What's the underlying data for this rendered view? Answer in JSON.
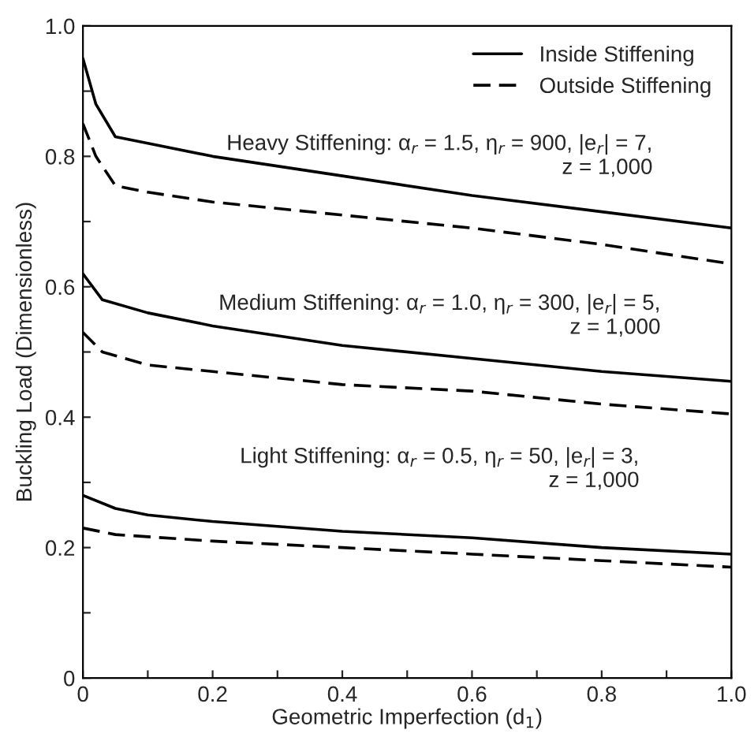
{
  "chart_data": {
    "type": "line",
    "xlabel": "Geometric Imperfection (d$_{1}$)",
    "ylabel": "Buckling Load (Dimensionless)",
    "xlim": [
      0,
      1.0
    ],
    "ylim": [
      0,
      1.0
    ],
    "xticks": [
      0,
      {
        "value": 0.1,
        "label": null
      },
      0.2,
      {
        "value": 0.3,
        "label": null
      },
      0.4,
      {
        "value": 0.5,
        "label": null
      },
      0.6,
      {
        "value": 0.7,
        "label": null
      },
      0.8,
      {
        "value": 0.9,
        "label": null
      },
      {
        "value": 1.0,
        "label": "1.0"
      }
    ],
    "yticks": [
      0,
      {
        "value": 0.1,
        "label": null
      },
      0.2,
      {
        "value": 0.3,
        "label": null
      },
      0.4,
      {
        "value": 0.5,
        "label": null
      },
      0.6,
      {
        "value": 0.7,
        "label": null
      },
      0.8,
      {
        "value": 0.9,
        "label": null
      },
      {
        "value": 1.0,
        "label": "1.0"
      }
    ],
    "grid": false,
    "legend": "top right",
    "marker": "none",
    "series": [
      {
        "name": "Inside Stiffening",
        "color": "#000000",
        "line_style": "solid",
        "x": [
          0,
          0.02,
          0.05,
          0.1,
          0.2,
          0.4,
          0.6,
          0.8,
          1.0
        ],
        "values": [
          0.95,
          0.88,
          0.83,
          0.82,
          0.8,
          0.77,
          0.74,
          0.715,
          0.69
        ]
      },
      {
        "name": "Outside Stiffening",
        "color": "#000000",
        "line_style": "dashed",
        "x": [
          0,
          0.02,
          0.05,
          0.1,
          0.2,
          0.4,
          0.6,
          0.8,
          1.0
        ],
        "values": [
          0.85,
          0.8,
          0.755,
          0.745,
          0.73,
          0.71,
          0.69,
          0.665,
          0.635
        ]
      },
      {
        "color": "#000000",
        "line_style": "solid",
        "x": [
          0,
          0.03,
          0.1,
          0.2,
          0.4,
          0.6,
          0.8,
          1.0
        ],
        "values": [
          0.62,
          0.58,
          0.56,
          0.54,
          0.51,
          0.49,
          0.47,
          0.455
        ]
      },
      {
        "color": "#000000",
        "line_style": "dashed",
        "x": [
          0,
          0.03,
          0.1,
          0.2,
          0.4,
          0.6,
          0.8,
          1.0
        ],
        "values": [
          0.53,
          0.5,
          0.48,
          0.47,
          0.45,
          0.44,
          0.42,
          0.405
        ]
      },
      {
        "color": "#000000",
        "line_style": "solid",
        "x": [
          0,
          0.05,
          0.1,
          0.2,
          0.4,
          0.6,
          0.8,
          1.0
        ],
        "values": [
          0.28,
          0.26,
          0.25,
          0.24,
          0.225,
          0.215,
          0.2,
          0.19
        ]
      },
      {
        "color": "#000000",
        "line_style": "dashed",
        "x": [
          0,
          0.05,
          0.2,
          0.4,
          0.6,
          0.8,
          1.0
        ],
        "values": [
          0.23,
          0.22,
          0.21,
          0.2,
          0.19,
          0.18,
          0.17
        ]
      }
    ],
    "annotations": [
      "Heavy Stiffening: α$_{r}$ = 1.5, η$_{r}$ = 900, |e$_{r}$| = 7,\nz = 1,000",
      "Medium Stiffening: α$_{r}$ = 1.0, η$_{r}$ = 300, |e$_{r}$| = 5,\nz = 1,000",
      "Light Stiffening: α$_{r}$ = 0.5, η$_{r}$ = 50, |e$_{r}$| = 3,\nz = 1,000"
    ]
  }
}
